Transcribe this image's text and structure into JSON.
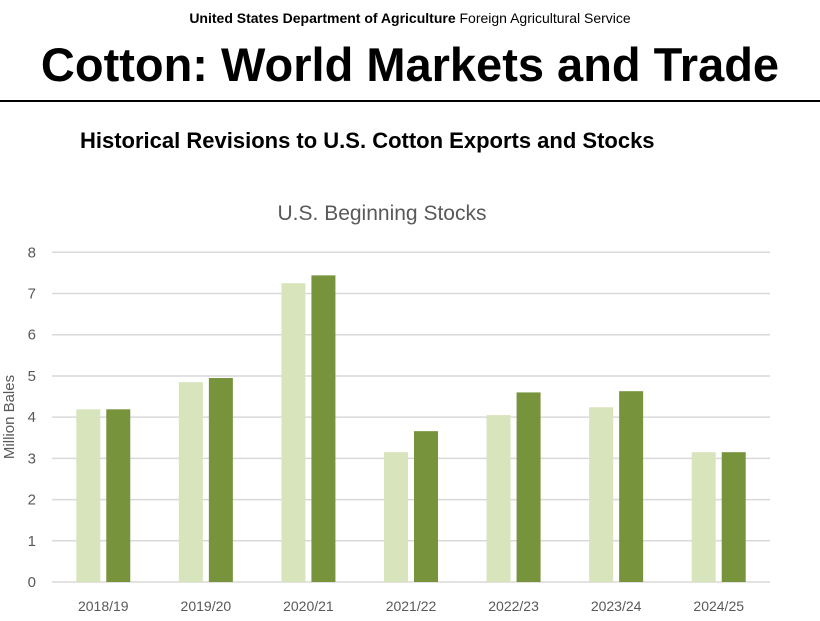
{
  "header": {
    "agency_bold": "United States Department of Agriculture",
    "agency_rest": "Foreign Agricultural Service",
    "title": "Cotton: World Markets and Trade",
    "subtitle": "Historical Revisions to U.S. Cotton Exports and Stocks"
  },
  "chart_data": {
    "type": "bar",
    "title": "U.S. Beginning Stocks",
    "xlabel": "",
    "ylabel": "Million Bales",
    "ylim": [
      0,
      8
    ],
    "yticks": [
      "0",
      "1",
      "2",
      "3",
      "4",
      "5",
      "6",
      "7",
      "8"
    ],
    "grid": true,
    "legend": "none",
    "categories": [
      "2018/19",
      "2019/20",
      "2020/21",
      "2021/22",
      "2022/23",
      "2023/24",
      "2024/25"
    ],
    "series": [
      {
        "name": "series-1",
        "color": "#d8e4bc",
        "values": [
          4.19,
          4.85,
          7.25,
          3.15,
          4.05,
          4.24,
          3.15
        ]
      },
      {
        "name": "series-2",
        "color": "#77933c",
        "values": [
          4.19,
          4.95,
          7.44,
          3.66,
          4.6,
          4.63,
          3.15
        ]
      }
    ]
  }
}
